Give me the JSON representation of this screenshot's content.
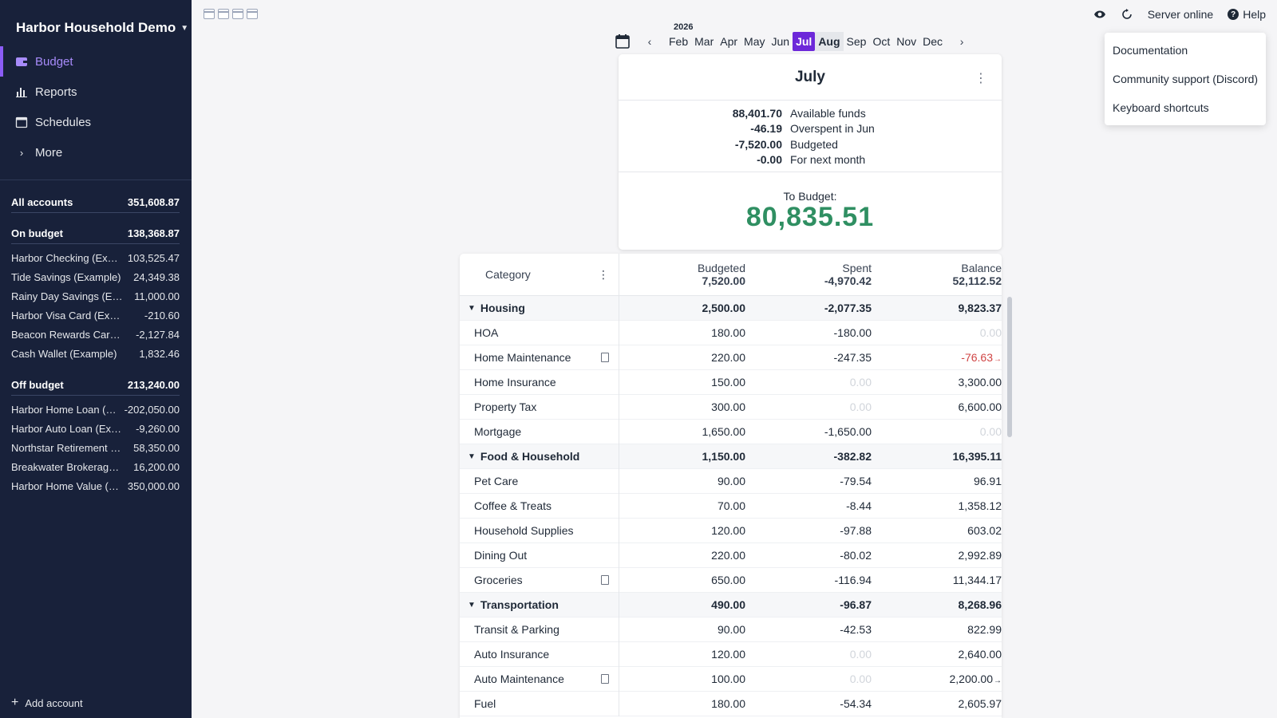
{
  "sidebar": {
    "budget_name": "Harbor Household Demo",
    "nav": [
      {
        "label": "Budget",
        "icon": "wallet-icon",
        "active": true
      },
      {
        "label": "Reports",
        "icon": "bar-chart-icon",
        "active": false
      },
      {
        "label": "Schedules",
        "icon": "calendar-icon",
        "active": false
      },
      {
        "label": "More",
        "icon": "chevron-right-icon",
        "active": false
      }
    ],
    "all_accounts": {
      "name": "All accounts",
      "balance": "351,608.87"
    },
    "on_budget": {
      "name": "On budget",
      "balance": "138,368.87"
    },
    "on_budget_accounts": [
      {
        "name": "Harbor Checking (Example)",
        "balance": "103,525.47"
      },
      {
        "name": "Tide Savings (Example)",
        "balance": "24,349.38"
      },
      {
        "name": "Rainy Day Savings (Example)",
        "balance": "11,000.00"
      },
      {
        "name": "Harbor Visa Card (Example)",
        "balance": "-210.60"
      },
      {
        "name": "Beacon Rewards Card (Example)",
        "balance": "-2,127.84"
      },
      {
        "name": "Cash Wallet (Example)",
        "balance": "1,832.46"
      }
    ],
    "off_budget": {
      "name": "Off budget",
      "balance": "213,240.00"
    },
    "off_budget_accounts": [
      {
        "name": "Harbor Home Loan (Example)",
        "balance": "-202,050.00"
      },
      {
        "name": "Harbor Auto Loan (Example)",
        "balance": "-9,260.00"
      },
      {
        "name": "Northstar Retirement (Example)",
        "balance": "58,350.00"
      },
      {
        "name": "Breakwater Brokerage (Example)",
        "balance": "16,200.00"
      },
      {
        "name": "Harbor Home Value (Example)",
        "balance": "350,000.00"
      }
    ],
    "add_account": "Add account"
  },
  "topbar": {
    "server_status": "Server online",
    "help_label": "Help"
  },
  "help_menu": [
    "Documentation",
    "Community support (Discord)",
    "Keyboard shortcuts"
  ],
  "month_picker": {
    "year": "2026",
    "months": [
      "Feb",
      "Mar",
      "Apr",
      "May",
      "Jun",
      "Jul",
      "Aug",
      "Sep",
      "Oct",
      "Nov",
      "Dec"
    ],
    "current": "Jul",
    "hovered": "Aug"
  },
  "summary": {
    "month": "July",
    "rows": [
      {
        "value": "88,401.70",
        "label": "Available funds"
      },
      {
        "value": "-46.19",
        "label": "Overspent in Jun"
      },
      {
        "value": "-7,520.00",
        "label": "Budgeted"
      },
      {
        "value": "-0.00",
        "label": "For next month"
      }
    ],
    "to_budget_label": "To Budget:",
    "to_budget_value": "80,835.51"
  },
  "table": {
    "category_header": "Category",
    "budgeted_header": "Budgeted",
    "budgeted_total": "7,520.00",
    "spent_header": "Spent",
    "spent_total": "-4,970.42",
    "balance_header": "Balance",
    "balance_total": "52,112.52",
    "rows": [
      {
        "type": "group",
        "name": "Housing",
        "budgeted": "2,500.00",
        "spent": "-2,077.35",
        "balance": "9,823.37"
      },
      {
        "type": "cat",
        "name": "HOA",
        "budgeted": "180.00",
        "spent": "-180.00",
        "balance": "0.00"
      },
      {
        "type": "cat",
        "name": "Home Maintenance",
        "note": true,
        "budgeted": "220.00",
        "spent": "-247.35",
        "balance": "-76.63",
        "balance_negative": true,
        "carryover": true
      },
      {
        "type": "cat",
        "name": "Home Insurance",
        "budgeted": "150.00",
        "spent": "0.00",
        "balance": "3,300.00"
      },
      {
        "type": "cat",
        "name": "Property Tax",
        "budgeted": "300.00",
        "spent": "0.00",
        "balance": "6,600.00"
      },
      {
        "type": "cat",
        "name": "Mortgage",
        "budgeted": "1,650.00",
        "spent": "-1,650.00",
        "balance": "0.00"
      },
      {
        "type": "group",
        "name": "Food & Household",
        "budgeted": "1,150.00",
        "spent": "-382.82",
        "balance": "16,395.11"
      },
      {
        "type": "cat",
        "name": "Pet Care",
        "budgeted": "90.00",
        "spent": "-79.54",
        "balance": "96.91"
      },
      {
        "type": "cat",
        "name": "Coffee & Treats",
        "budgeted": "70.00",
        "spent": "-8.44",
        "balance": "1,358.12"
      },
      {
        "type": "cat",
        "name": "Household Supplies",
        "budgeted": "120.00",
        "spent": "-97.88",
        "balance": "603.02"
      },
      {
        "type": "cat",
        "name": "Dining Out",
        "budgeted": "220.00",
        "spent": "-80.02",
        "balance": "2,992.89"
      },
      {
        "type": "cat",
        "name": "Groceries",
        "note": true,
        "budgeted": "650.00",
        "spent": "-116.94",
        "balance": "11,344.17"
      },
      {
        "type": "group",
        "name": "Transportation",
        "budgeted": "490.00",
        "spent": "-96.87",
        "balance": "8,268.96"
      },
      {
        "type": "cat",
        "name": "Transit & Parking",
        "budgeted": "90.00",
        "spent": "-42.53",
        "balance": "822.99"
      },
      {
        "type": "cat",
        "name": "Auto Insurance",
        "budgeted": "120.00",
        "spent": "0.00",
        "balance": "2,640.00"
      },
      {
        "type": "cat",
        "name": "Auto Maintenance",
        "note": true,
        "budgeted": "100.00",
        "spent": "0.00",
        "balance": "2,200.00",
        "carryover": true
      },
      {
        "type": "cat",
        "name": "Fuel",
        "budgeted": "180.00",
        "spent": "-54.34",
        "balance": "2,605.97"
      }
    ]
  },
  "colors": {
    "sidebar_bg": "#18213a",
    "accent": "#6d28d9",
    "to_budget_green": "#2f8f62",
    "negative_red": "#d04545"
  }
}
